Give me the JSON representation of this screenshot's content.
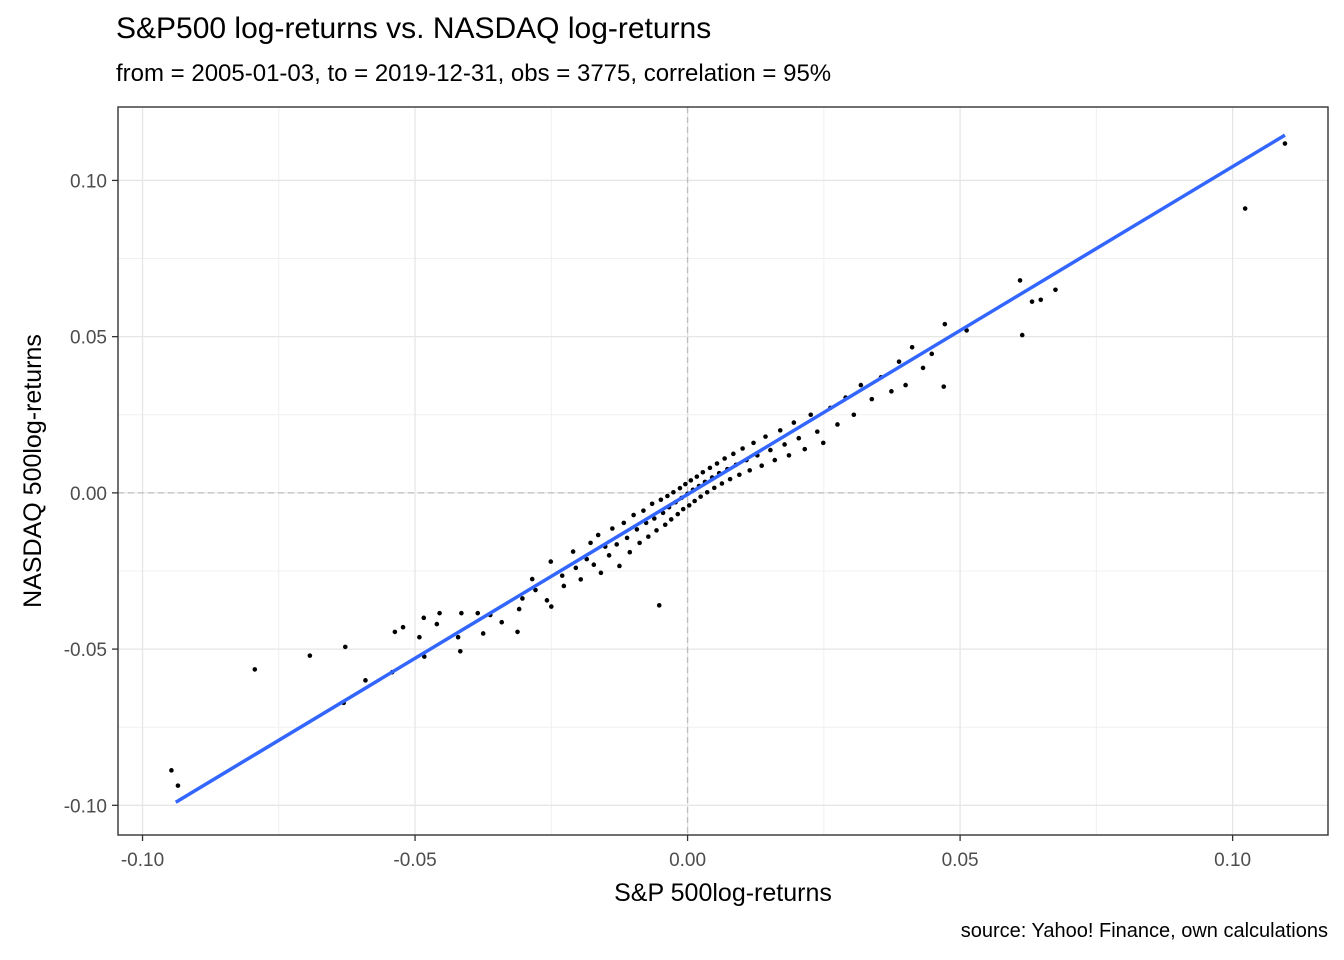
{
  "chart_data": {
    "type": "scatter",
    "title": "S&P500 log-returns vs. NASDAQ log-returns",
    "subtitle": "from = 2005-01-03, to = 2019-12-31, obs = 3775, correlation = 95%",
    "caption": "source: Yahoo! Finance, own calculations",
    "xlabel": "S&P 500log-returns",
    "ylabel": "NASDAQ 500log-returns",
    "xlim": [
      -0.1045,
      0.1175
    ],
    "ylim": [
      -0.1095,
      0.1235
    ],
    "x_ticks": [
      -0.1,
      -0.05,
      0.0,
      0.05,
      0.1
    ],
    "x_tick_labels": [
      "-0.10",
      "-0.05",
      "0.00",
      "0.05",
      "0.10"
    ],
    "y_ticks": [
      -0.1,
      -0.05,
      0.0,
      0.05,
      0.1
    ],
    "y_tick_labels": [
      "-0.10",
      "-0.05",
      "0.00",
      "0.05",
      "0.10"
    ],
    "grid": true,
    "reference_lines": {
      "x": 0,
      "y": 0,
      "style": "dashed"
    },
    "series": [
      {
        "kind": "points",
        "color": "#000000",
        "points": [
          [
            -0.0947,
            -0.0888
          ],
          [
            -0.0935,
            -0.0937
          ],
          [
            -0.0794,
            -0.0565
          ],
          [
            -0.0693,
            -0.0521
          ],
          [
            -0.0631,
            -0.0672
          ],
          [
            -0.0628,
            -0.0493
          ],
          [
            -0.0591,
            -0.06
          ],
          [
            -0.0542,
            -0.0574
          ],
          [
            -0.0537,
            -0.0445
          ],
          [
            -0.0522,
            -0.043
          ],
          [
            -0.0492,
            -0.0462
          ],
          [
            -0.0483,
            -0.0524
          ],
          [
            -0.0484,
            -0.04
          ],
          [
            -0.046,
            -0.042
          ],
          [
            -0.0455,
            -0.0385
          ],
          [
            -0.0421,
            -0.0462
          ],
          [
            -0.0415,
            -0.0385
          ],
          [
            -0.0417,
            -0.0507
          ],
          [
            -0.0385,
            -0.0385
          ],
          [
            -0.0375,
            -0.045
          ],
          [
            -0.0362,
            -0.0391
          ],
          [
            -0.0341,
            -0.0414
          ],
          [
            -0.0312,
            -0.0445
          ],
          [
            -0.0309,
            -0.0372
          ],
          [
            -0.0303,
            -0.0338
          ],
          [
            -0.0285,
            -0.0276
          ],
          [
            -0.0279,
            -0.0311
          ],
          [
            -0.0258,
            -0.0344
          ],
          [
            -0.0251,
            -0.022
          ],
          [
            -0.025,
            -0.0364
          ],
          [
            -0.023,
            -0.0265
          ],
          [
            -0.0227,
            -0.0298
          ],
          [
            -0.021,
            -0.0188
          ],
          [
            -0.0205,
            -0.024
          ],
          [
            -0.0196,
            -0.0277
          ],
          [
            -0.0185,
            -0.0212
          ],
          [
            -0.0178,
            -0.016
          ],
          [
            -0.0172,
            -0.023
          ],
          [
            -0.0164,
            -0.0135
          ],
          [
            -0.0159,
            -0.0256
          ],
          [
            -0.0151,
            -0.0172
          ],
          [
            -0.0144,
            -0.02
          ],
          [
            -0.0138,
            -0.0114
          ],
          [
            -0.013,
            -0.0165
          ],
          [
            -0.0125,
            -0.0234
          ],
          [
            -0.0117,
            -0.0096
          ],
          [
            -0.0111,
            -0.0144
          ],
          [
            -0.0106,
            -0.019
          ],
          [
            -0.0099,
            -0.0071
          ],
          [
            -0.0093,
            -0.0117
          ],
          [
            -0.0088,
            -0.016
          ],
          [
            -0.0081,
            -0.0057
          ],
          [
            -0.0076,
            -0.0096
          ],
          [
            -0.0072,
            -0.014
          ],
          [
            -0.0065,
            -0.0035
          ],
          [
            -0.0061,
            -0.0082
          ],
          [
            -0.0057,
            -0.012
          ],
          [
            -0.0052,
            -0.036
          ],
          [
            -0.0049,
            -0.0022
          ],
          [
            -0.0045,
            -0.0064
          ],
          [
            -0.0041,
            -0.0102
          ],
          [
            -0.0037,
            -0.001
          ],
          [
            -0.0034,
            -0.0046
          ],
          [
            -0.003,
            -0.0085
          ],
          [
            -0.0026,
            0.0002
          ],
          [
            -0.0022,
            -0.003
          ],
          [
            -0.0018,
            -0.0068
          ],
          [
            -0.0014,
            0.0015
          ],
          [
            -0.0011,
            -0.0016
          ],
          [
            -0.0008,
            -0.0052
          ],
          [
            -0.0004,
            0.0028
          ],
          [
            0.0,
            -0.0003
          ],
          [
            0.0003,
            -0.004
          ],
          [
            0.0006,
            0.004
          ],
          [
            0.001,
            0.001
          ],
          [
            0.0013,
            -0.0026
          ],
          [
            0.0017,
            0.0052
          ],
          [
            0.0021,
            0.0022
          ],
          [
            0.0024,
            -0.0012
          ],
          [
            0.0028,
            0.0066
          ],
          [
            0.0032,
            0.0035
          ],
          [
            0.0036,
            0.0002
          ],
          [
            0.0041,
            0.008
          ],
          [
            0.0045,
            0.0049
          ],
          [
            0.0049,
            0.0016
          ],
          [
            0.0054,
            0.0094
          ],
          [
            0.0058,
            0.0063
          ],
          [
            0.0063,
            0.003
          ],
          [
            0.0068,
            0.011
          ],
          [
            0.0073,
            0.0076
          ],
          [
            0.0078,
            0.0044
          ],
          [
            0.0084,
            0.0125
          ],
          [
            0.0089,
            0.009
          ],
          [
            0.0095,
            0.0058
          ],
          [
            0.0101,
            0.0142
          ],
          [
            0.0108,
            0.0105
          ],
          [
            0.0114,
            0.0072
          ],
          [
            0.0121,
            0.016
          ],
          [
            0.0128,
            0.012
          ],
          [
            0.0136,
            0.0087
          ],
          [
            0.0143,
            0.018
          ],
          [
            0.0152,
            0.0137
          ],
          [
            0.016,
            0.0105
          ],
          [
            0.017,
            0.02
          ],
          [
            0.0178,
            0.0155
          ],
          [
            0.0186,
            0.012
          ],
          [
            0.0195,
            0.0225
          ],
          [
            0.0204,
            0.0175
          ],
          [
            0.0215,
            0.014
          ],
          [
            0.0226,
            0.025
          ],
          [
            0.0238,
            0.0196
          ],
          [
            0.0249,
            0.016
          ],
          [
            0.0262,
            0.0272
          ],
          [
            0.0275,
            0.0219
          ],
          [
            0.029,
            0.0305
          ],
          [
            0.0305,
            0.025
          ],
          [
            0.0318,
            0.0345
          ],
          [
            0.0338,
            0.03
          ],
          [
            0.0355,
            0.037
          ],
          [
            0.0374,
            0.0325
          ],
          [
            0.0388,
            0.042
          ],
          [
            0.04,
            0.0345
          ],
          [
            0.0412,
            0.0466
          ],
          [
            0.0432,
            0.04
          ],
          [
            0.0448,
            0.0445
          ],
          [
            0.0472,
            0.054
          ],
          [
            0.047,
            0.034
          ],
          [
            0.0512,
            0.052
          ],
          [
            0.061,
            0.068
          ],
          [
            0.0614,
            0.0505
          ],
          [
            0.0632,
            0.0612
          ],
          [
            0.0648,
            0.0618
          ],
          [
            0.0675,
            0.065
          ],
          [
            0.1023,
            0.091
          ],
          [
            0.1096,
            0.1118
          ]
        ]
      },
      {
        "kind": "regression-line",
        "color": "#3366ff",
        "points": [
          [
            -0.0939,
            -0.099
          ],
          [
            0.1096,
            0.1145
          ]
        ]
      }
    ]
  }
}
